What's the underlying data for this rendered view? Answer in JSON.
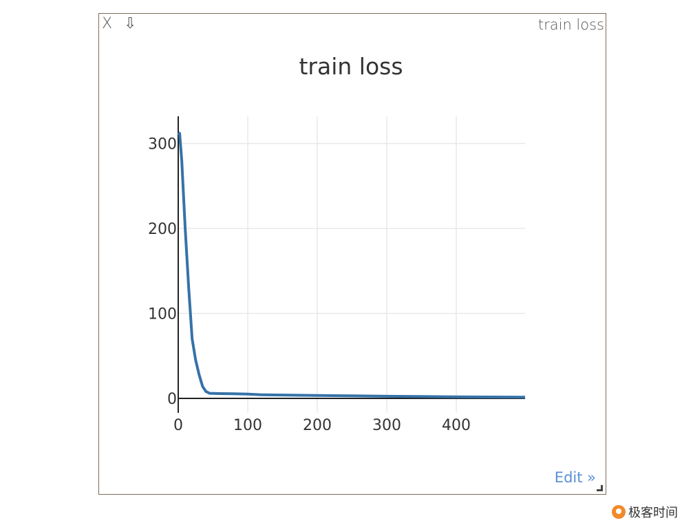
{
  "pane": {
    "close_label": "X",
    "save_label": "⇩",
    "title": "train loss",
    "edit_label": "Edit »"
  },
  "watermark": {
    "text": "极客时间"
  },
  "colors": {
    "line": "#3672a8",
    "axis": "#222222",
    "grid": "#e8e8e8",
    "border": "#7d6b5a",
    "edit_link": "#5a8fd6"
  },
  "chart_data": {
    "type": "line",
    "title": "train loss",
    "xlabel": "",
    "ylabel": "",
    "xlim": [
      0,
      499
    ],
    "ylim": [
      -17,
      332
    ],
    "xticks": [
      0,
      100,
      200,
      300,
      400
    ],
    "yticks": [
      0,
      100,
      200,
      300
    ],
    "grid": true,
    "legend": "none",
    "series": [
      {
        "x": [
          0,
          2,
          5,
          10,
          15,
          20,
          25,
          30,
          35,
          40,
          45,
          50,
          60,
          80,
          100,
          120,
          150,
          200,
          250,
          300,
          350,
          400,
          450,
          499
        ],
        "y": [
          310,
          312,
          280,
          200,
          130,
          70,
          45,
          28,
          14,
          8,
          6,
          5.8,
          5.7,
          5.5,
          5.0,
          4.3,
          4.0,
          3.5,
          3.0,
          2.5,
          2.2,
          1.8,
          1.6,
          1.4
        ]
      }
    ]
  }
}
